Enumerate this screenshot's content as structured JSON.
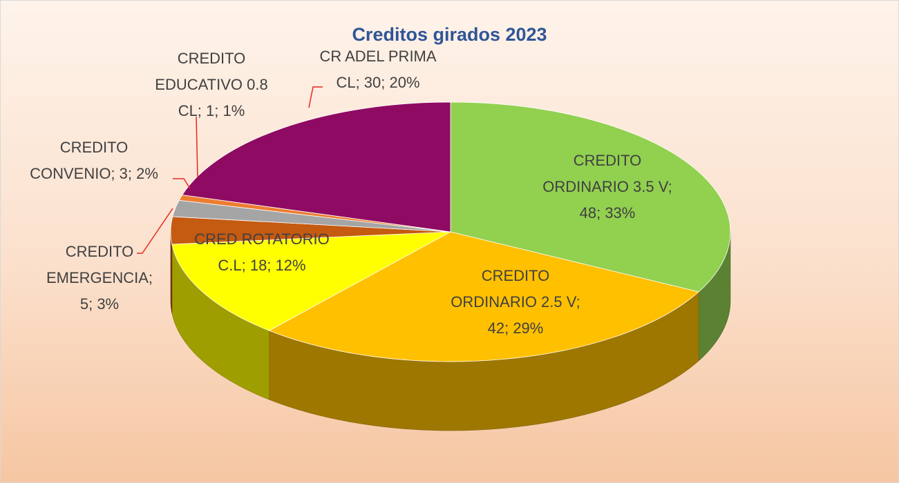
{
  "chart_data": {
    "type": "pie",
    "title": "Creditos girados 2023",
    "values": [
      48,
      42,
      18,
      5,
      3,
      1,
      30
    ],
    "value_labels": [
      "CREDITO ORDINARIO 3.5 V; 48; 33%",
      "CREDITO ORDINARIO 2.5 V; 42; 29%",
      "CRED ROTATORIO C.L; 18; 12%",
      "CREDITO EMERGENCIA; 5; 3%",
      "CREDITO CONVENIO; 3; 2%",
      "CREDITO EDUCATIVO 0.8 CL; 1; 1%",
      "CR ADEL PRIMA CL; 30; 20%"
    ],
    "colors": [
      "#92d050",
      "#ffc000",
      "#ffff00",
      "#c55a11",
      "#a5a5a5",
      "#ed7d31",
      "#8f0a63"
    ]
  }
}
